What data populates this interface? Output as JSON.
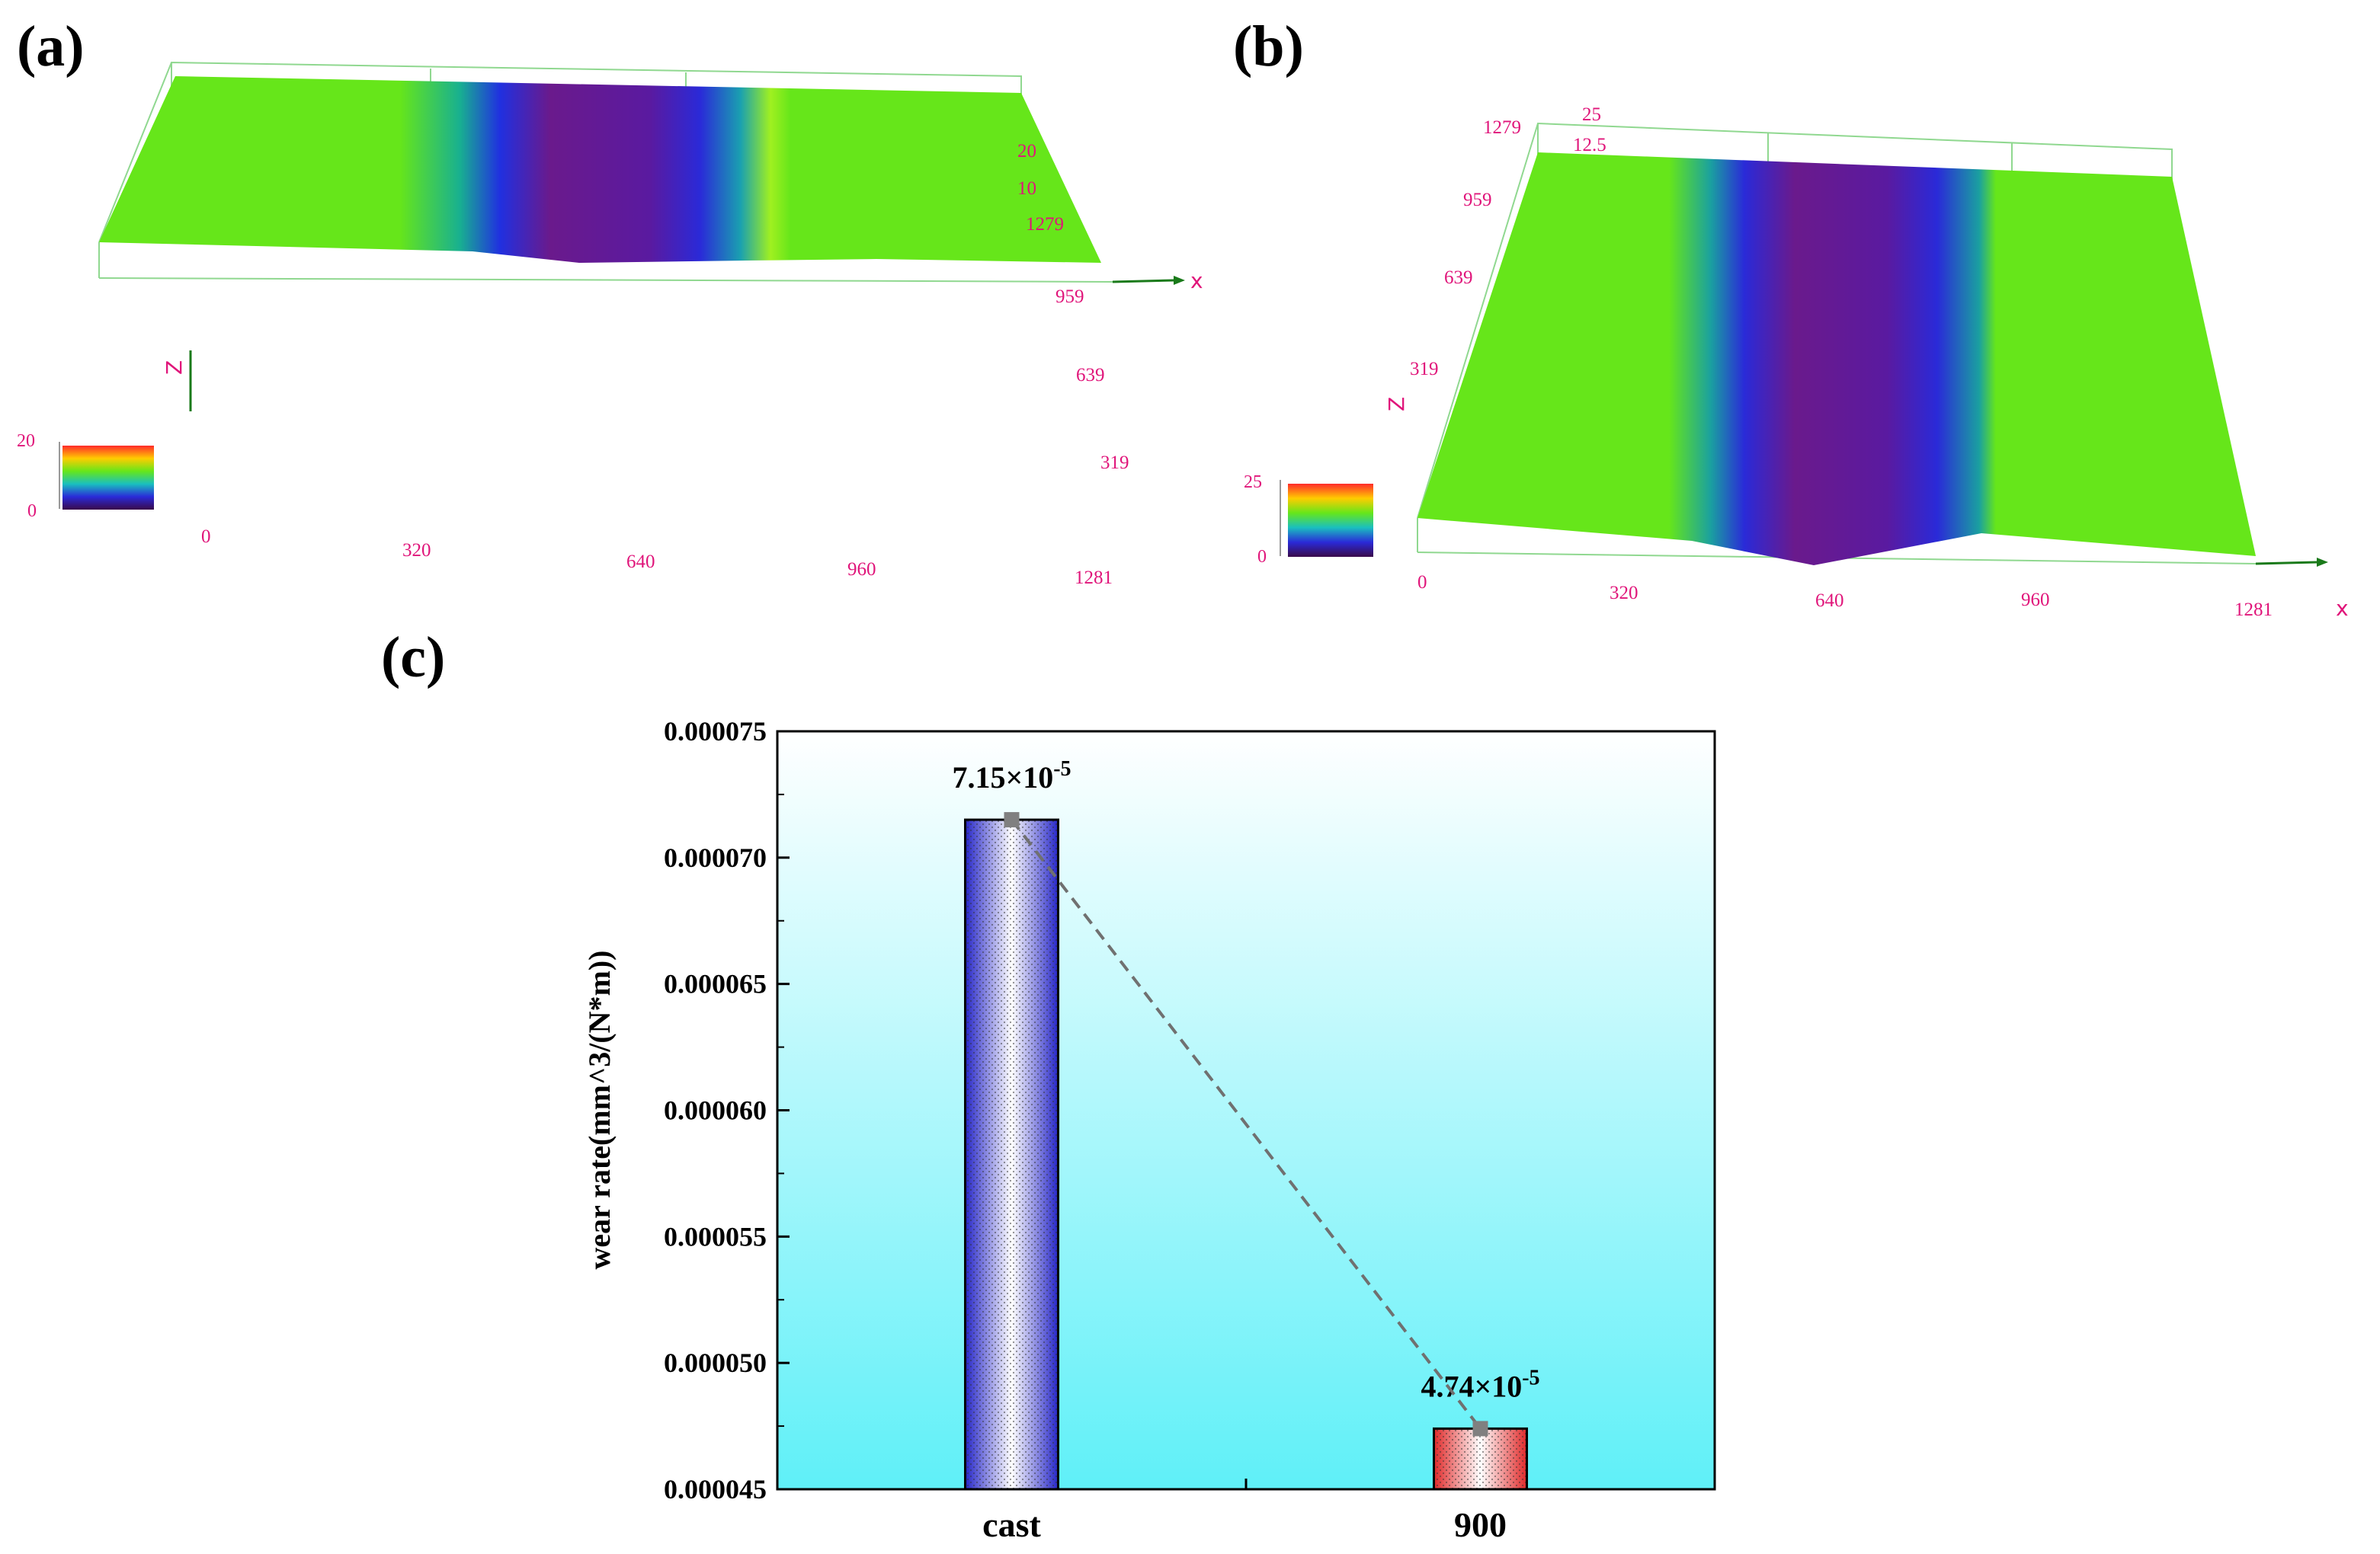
{
  "panels": {
    "a": {
      "label": "(a)",
      "x_ticks": [
        "0",
        "320",
        "640",
        "960",
        "1281"
      ],
      "y_ticks": [
        "1279",
        "959",
        "639",
        "319"
      ],
      "z_ticks": [
        "20",
        "10"
      ],
      "x_axis": "x",
      "z_axis": "Z",
      "legend_max": "20",
      "legend_min": "0"
    },
    "b": {
      "label": "(b)",
      "x_ticks": [
        "0",
        "320",
        "640",
        "960",
        "1281"
      ],
      "y_ticks": [
        "1279",
        "959",
        "639",
        "319"
      ],
      "z_ticks": [
        "25",
        "12.5"
      ],
      "x_axis": "x",
      "z_axis": "Z",
      "legend_max": "25",
      "legend_min": "0"
    },
    "c": {
      "label": "(c)"
    }
  },
  "colors": {
    "surface_green": "#66e61a",
    "wear_blue": "#2a2ad8",
    "wear_purple": "#6a1a8c",
    "tick_magenta": "#e0157a",
    "bar_blue": "#3333cc",
    "bar_red": "#e03a3a",
    "bg_top": "#ffffff",
    "bg_bottom": "#5ff0f8"
  },
  "chart_data": {
    "type": "bar",
    "categories": [
      "cast",
      "900"
    ],
    "values": [
      7.15e-05,
      4.74e-05
    ],
    "data_labels": [
      "7.15×10",
      "4.74×10"
    ],
    "data_label_exponent": "-5",
    "ylabel": "wear rate(mm^3/(N*m))",
    "xlabel": "",
    "ylim": [
      4.5e-05,
      7.5e-05
    ],
    "yticks": [
      4.5e-05,
      5e-05,
      5.5e-05,
      6e-05,
      6.5e-05,
      7e-05,
      7.5e-05
    ],
    "ytick_labels": [
      "0.000045",
      "0.000050",
      "0.000055",
      "0.000060",
      "0.000065",
      "0.000070",
      "0.000075"
    ],
    "trend_line": "dashed line connecting bar tops"
  }
}
